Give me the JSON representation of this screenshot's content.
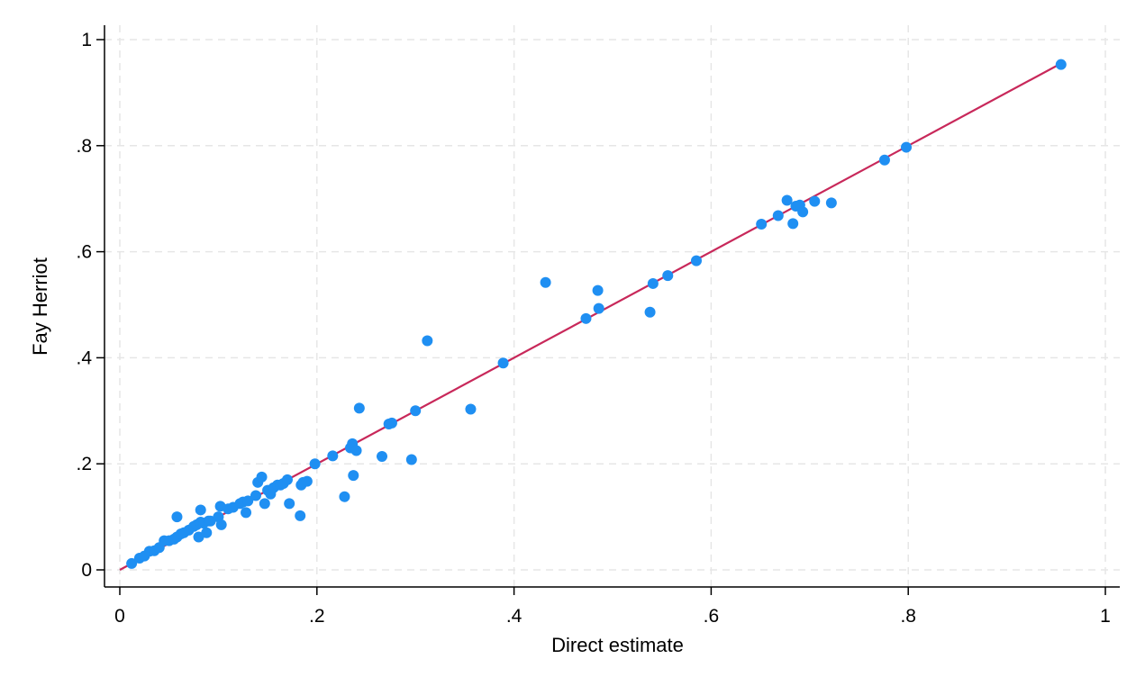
{
  "chart_data": {
    "type": "scatter",
    "title": "",
    "xlabel": "Direct estimate",
    "ylabel": "Fay Herriot",
    "xlim": [
      0,
      1
    ],
    "ylim": [
      0,
      1
    ],
    "x_ticks": [
      0,
      0.2,
      0.4,
      0.6,
      0.8,
      1
    ],
    "x_tick_labels": [
      "0",
      ".2",
      ".4",
      ".6",
      ".8",
      "1"
    ],
    "y_ticks": [
      0,
      0.2,
      0.4,
      0.6,
      0.8,
      1
    ],
    "y_tick_labels": [
      "0",
      ".2",
      ".4",
      ".6",
      ".8",
      "1"
    ],
    "grid": true,
    "legend": "none",
    "series": [
      {
        "type": "scatter",
        "color": "#1f8ff2",
        "points": [
          [
            0.012,
            0.012
          ],
          [
            0.02,
            0.022
          ],
          [
            0.025,
            0.026
          ],
          [
            0.03,
            0.035
          ],
          [
            0.035,
            0.036
          ],
          [
            0.04,
            0.042
          ],
          [
            0.045,
            0.055
          ],
          [
            0.05,
            0.055
          ],
          [
            0.055,
            0.058
          ],
          [
            0.058,
            0.062
          ],
          [
            0.058,
            0.1
          ],
          [
            0.062,
            0.068
          ],
          [
            0.065,
            0.07
          ],
          [
            0.07,
            0.075
          ],
          [
            0.075,
            0.082
          ],
          [
            0.078,
            0.085
          ],
          [
            0.08,
            0.062
          ],
          [
            0.082,
            0.09
          ],
          [
            0.082,
            0.113
          ],
          [
            0.085,
            0.088
          ],
          [
            0.088,
            0.07
          ],
          [
            0.09,
            0.092
          ],
          [
            0.092,
            0.092
          ],
          [
            0.1,
            0.1
          ],
          [
            0.102,
            0.12
          ],
          [
            0.103,
            0.085
          ],
          [
            0.11,
            0.115
          ],
          [
            0.115,
            0.118
          ],
          [
            0.122,
            0.125
          ],
          [
            0.125,
            0.128
          ],
          [
            0.128,
            0.108
          ],
          [
            0.13,
            0.13
          ],
          [
            0.138,
            0.14
          ],
          [
            0.14,
            0.165
          ],
          [
            0.144,
            0.175
          ],
          [
            0.147,
            0.125
          ],
          [
            0.15,
            0.15
          ],
          [
            0.153,
            0.143
          ],
          [
            0.156,
            0.155
          ],
          [
            0.16,
            0.16
          ],
          [
            0.163,
            0.16
          ],
          [
            0.166,
            0.163
          ],
          [
            0.17,
            0.17
          ],
          [
            0.172,
            0.125
          ],
          [
            0.183,
            0.102
          ],
          [
            0.184,
            0.16
          ],
          [
            0.186,
            0.165
          ],
          [
            0.19,
            0.167
          ],
          [
            0.198,
            0.2
          ],
          [
            0.216,
            0.215
          ],
          [
            0.228,
            0.138
          ],
          [
            0.234,
            0.23
          ],
          [
            0.236,
            0.238
          ],
          [
            0.237,
            0.178
          ],
          [
            0.24,
            0.225
          ],
          [
            0.243,
            0.305
          ],
          [
            0.266,
            0.214
          ],
          [
            0.273,
            0.275
          ],
          [
            0.276,
            0.277
          ],
          [
            0.296,
            0.208
          ],
          [
            0.3,
            0.3
          ],
          [
            0.312,
            0.432
          ],
          [
            0.356,
            0.303
          ],
          [
            0.389,
            0.39
          ],
          [
            0.432,
            0.542
          ],
          [
            0.473,
            0.474
          ],
          [
            0.485,
            0.527
          ],
          [
            0.486,
            0.493
          ],
          [
            0.538,
            0.486
          ],
          [
            0.541,
            0.54
          ],
          [
            0.556,
            0.555
          ],
          [
            0.585,
            0.583
          ],
          [
            0.651,
            0.652
          ],
          [
            0.668,
            0.668
          ],
          [
            0.677,
            0.697
          ],
          [
            0.683,
            0.653
          ],
          [
            0.686,
            0.686
          ],
          [
            0.69,
            0.688
          ],
          [
            0.693,
            0.675
          ],
          [
            0.705,
            0.695
          ],
          [
            0.722,
            0.692
          ],
          [
            0.776,
            0.773
          ],
          [
            0.798,
            0.797
          ],
          [
            0.955,
            0.953
          ]
        ]
      },
      {
        "type": "line",
        "color": "#c8285a",
        "x": [
          0,
          0.955
        ],
        "y": [
          0,
          0.955
        ]
      }
    ]
  }
}
